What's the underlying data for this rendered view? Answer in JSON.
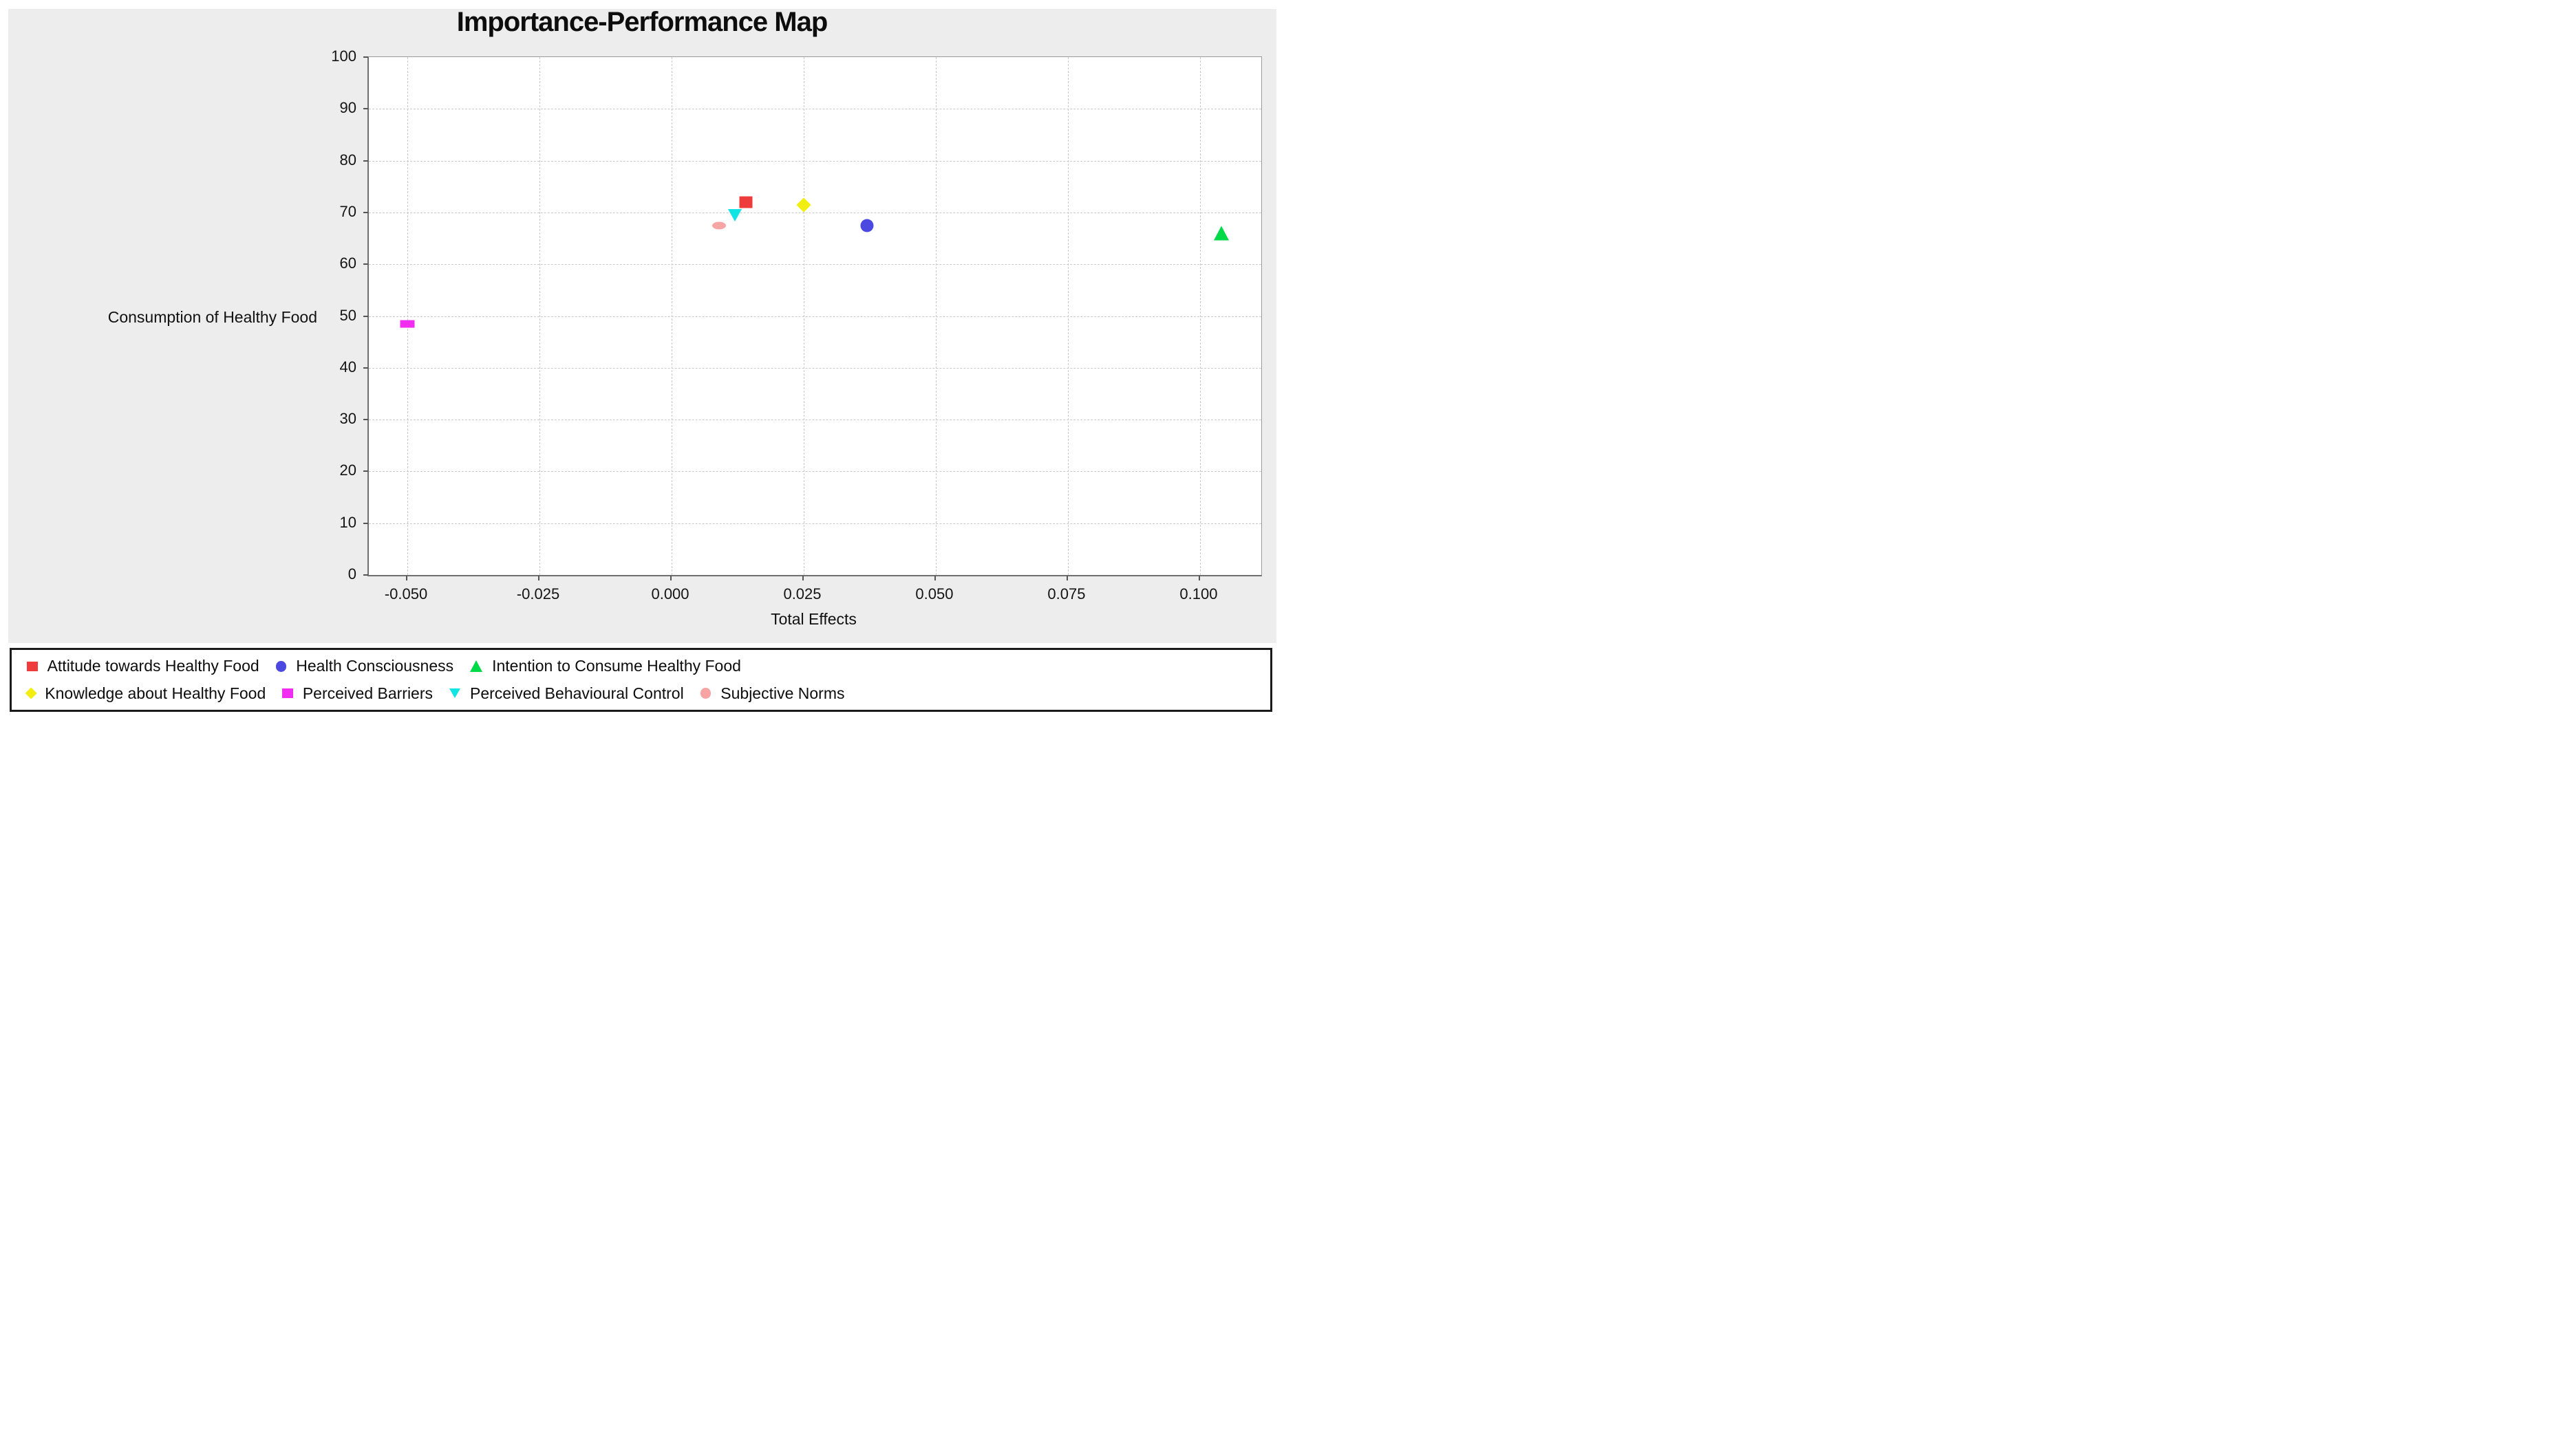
{
  "chart_data": {
    "type": "scatter",
    "title": "Importance-Performance Map",
    "xlabel": "Total Effects",
    "ylabel": "Consumption of Healthy Food",
    "xlim": [
      -0.0573,
      0.1116
    ],
    "ylim": [
      0,
      100
    ],
    "x_ticks": [
      -0.05,
      -0.025,
      0.0,
      0.025,
      0.05,
      0.075,
      0.1
    ],
    "x_tick_labels": [
      "-0.050",
      "-0.025",
      "0.000",
      "0.025",
      "0.050",
      "0.075",
      "0.100"
    ],
    "y_ticks": [
      0,
      10,
      20,
      30,
      40,
      50,
      60,
      70,
      80,
      90,
      100
    ],
    "y_tick_labels": [
      "0",
      "10",
      "20",
      "30",
      "40",
      "50",
      "60",
      "70",
      "80",
      "90",
      "100"
    ],
    "grid": true,
    "legend_position": "bottom",
    "series": [
      {
        "name": "Attitude towards Healthy Food",
        "marker": "square",
        "color": "#ee3b3b",
        "x": 0.014,
        "y": 72
      },
      {
        "name": "Health Consciousness",
        "marker": "circle",
        "color": "#4b49e0",
        "x": 0.037,
        "y": 67.5
      },
      {
        "name": "Intention to Consume Healthy Food",
        "marker": "triangle-up",
        "color": "#00d948",
        "x": 0.104,
        "y": 66
      },
      {
        "name": "Knowledge about Healthy Food",
        "marker": "diamond",
        "color": "#f2ee12",
        "x": 0.025,
        "y": 71.5
      },
      {
        "name": "Perceived Barriers",
        "marker": "rect",
        "color": "#f12df1",
        "x": -0.05,
        "y": 48.5
      },
      {
        "name": "Perceived Behavioural Control",
        "marker": "triangle-down",
        "color": "#12e3e3",
        "x": 0.012,
        "y": 69.5
      },
      {
        "name": "Subjective Norms",
        "marker": "ellipse",
        "color": "#f7a4a4",
        "x": 0.009,
        "y": 67.5
      }
    ],
    "legend_rows": [
      [
        0,
        1,
        2
      ],
      [
        3,
        4,
        5,
        6
      ]
    ]
  },
  "colors": {
    "panel_background": "#ededed",
    "plot_background": "#ffffff",
    "gridline": "#c9c9c9",
    "axis_frame": "#6f6f6f",
    "text": "#0d0d0d",
    "legend_border": "#1a1a1a"
  }
}
